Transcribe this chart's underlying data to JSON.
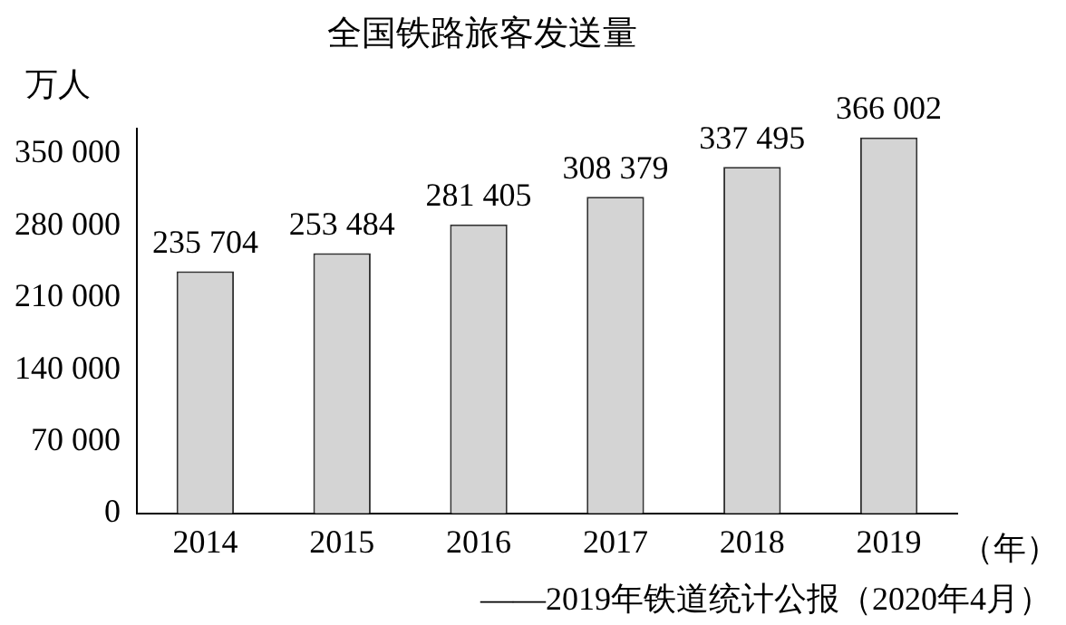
{
  "chart_data": {
    "type": "bar",
    "title": "全国铁路旅客发送量",
    "ylabel": "万人",
    "xlabel": "（年）",
    "annotations": [
      "——2019年铁道统计公报（2020年4月）"
    ],
    "categories": [
      "2014",
      "2015",
      "2016",
      "2017",
      "2018",
      "2019"
    ],
    "values": [
      235704,
      253484,
      281405,
      308379,
      337495,
      366002
    ],
    "value_labels": [
      "235 704",
      "253 484",
      "281 405",
      "308 379",
      "337 495",
      "366 002"
    ],
    "color": "#d4d4d4",
    "ylim": [
      0,
      375000
    ],
    "yticks": [
      {
        "value": 0,
        "label": "0"
      },
      {
        "value": 70000,
        "label": "70 000"
      },
      {
        "value": 140000,
        "label": "140 000"
      },
      {
        "value": 210000,
        "label": "210 000"
      },
      {
        "value": 280000,
        "label": "280 000"
      },
      {
        "value": 350000,
        "label": "350 000"
      }
    ],
    "grid": false,
    "legend": false
  }
}
